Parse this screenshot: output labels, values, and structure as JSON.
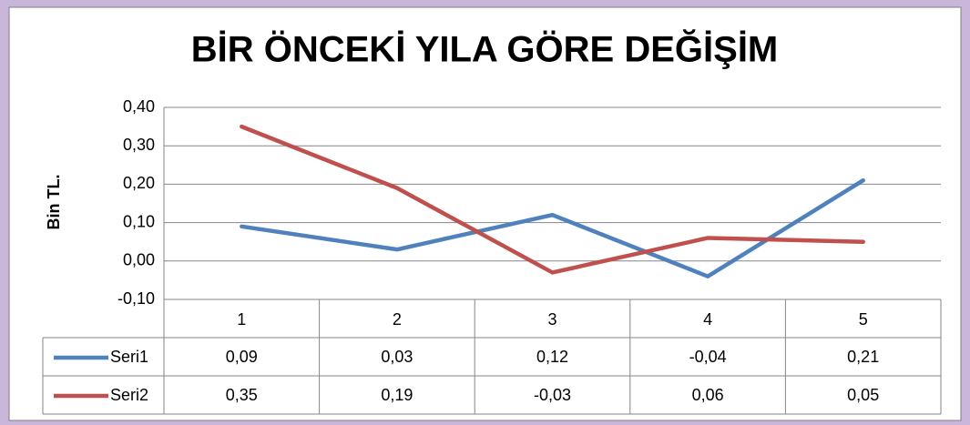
{
  "chart_data": {
    "type": "line",
    "title": "BİR ÖNCEKİ YILA GÖRE DEĞİŞİM",
    "y_label": "Bin TL.",
    "categories": [
      "1",
      "2",
      "3",
      "4",
      "5"
    ],
    "series": [
      {
        "name": "Seri1",
        "color": "#4f81bd",
        "values": [
          0.09,
          0.03,
          0.12,
          -0.04,
          0.21
        ],
        "value_labels": [
          "0,09",
          "0,03",
          "0,12",
          "-0,04",
          "0,21"
        ]
      },
      {
        "name": "Seri2",
        "color": "#c0504d",
        "values": [
          0.35,
          0.19,
          -0.03,
          0.06,
          0.05
        ],
        "value_labels": [
          "0,35",
          "0,19",
          "-0,03",
          "0,06",
          "0,05"
        ]
      }
    ],
    "ylim": [
      -0.1,
      0.4
    ],
    "yticks": [
      {
        "value": -0.1,
        "label": "-0,10"
      },
      {
        "value": 0,
        "label": "0,00"
      },
      {
        "value": 0.1,
        "label": "0,10"
      },
      {
        "value": 0.2,
        "label": "0,20"
      },
      {
        "value": 0.3,
        "label": "0,30"
      },
      {
        "value": 0.4,
        "label": "0,40"
      }
    ],
    "grid": true
  }
}
